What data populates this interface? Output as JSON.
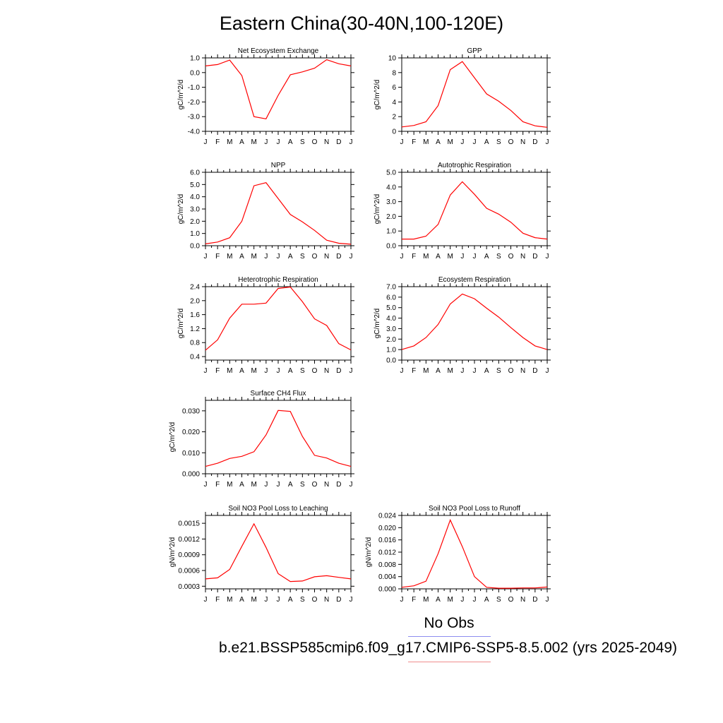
{
  "title": "Eastern China(30-40N,100-120E)",
  "legend": {
    "obs_label": "No Obs",
    "obs_color": "#8e8ef0",
    "model_label": "b.e21.BSSP585cmip6.f09_g17.CMIP6-SSP5-8.5.002 (yrs 2025-2049)",
    "model_color": "#f08e8e"
  },
  "line_color": "#ff0000",
  "chart_data": [
    {
      "type": "line",
      "title": "Net Ecosystem Exchange",
      "ylabel": "gC/m^2/d",
      "categories": [
        "J",
        "F",
        "M",
        "A",
        "M",
        "J",
        "J",
        "A",
        "S",
        "O",
        "N",
        "D",
        "J"
      ],
      "ylim": [
        -4.0,
        1.0
      ],
      "yticks": [
        "1.0",
        "0.0",
        "-1.0",
        "-2.0",
        "-3.0",
        "-4.0"
      ],
      "ytick_values": [
        1.0,
        0.0,
        -1.0,
        -2.0,
        -3.0,
        -4.0
      ],
      "values": [
        0.45,
        0.55,
        0.85,
        -0.2,
        -3.0,
        -3.15,
        -1.55,
        -0.15,
        0.05,
        0.3,
        0.88,
        0.6,
        0.45
      ]
    },
    {
      "type": "line",
      "title": "GPP",
      "ylabel": "gC/m^2/d",
      "categories": [
        "J",
        "F",
        "M",
        "A",
        "M",
        "J",
        "J",
        "A",
        "S",
        "O",
        "N",
        "D",
        "J"
      ],
      "ylim": [
        0,
        10
      ],
      "yticks": [
        "10",
        "8",
        "6",
        "4",
        "2",
        "0"
      ],
      "ytick_values": [
        10,
        8,
        6,
        4,
        2,
        0
      ],
      "values": [
        0.6,
        0.8,
        1.3,
        3.5,
        8.4,
        9.5,
        7.3,
        5.1,
        4.1,
        2.85,
        1.3,
        0.75,
        0.55
      ]
    },
    {
      "type": "line",
      "title": "NPP",
      "ylabel": "gC/m^2/d",
      "categories": [
        "J",
        "F",
        "M",
        "A",
        "M",
        "J",
        "J",
        "A",
        "S",
        "O",
        "N",
        "D",
        "J"
      ],
      "ylim": [
        0,
        6.0
      ],
      "yticks": [
        "6.0",
        "5.0",
        "4.0",
        "3.0",
        "2.0",
        "1.0",
        "0.0"
      ],
      "ytick_values": [
        6,
        5,
        4,
        3,
        2,
        1,
        0
      ],
      "values": [
        0.15,
        0.3,
        0.65,
        2.0,
        4.9,
        5.15,
        3.85,
        2.55,
        1.95,
        1.25,
        0.45,
        0.2,
        0.12
      ]
    },
    {
      "type": "line",
      "title": "Autotrophic Respiration",
      "ylabel": "gC/m^2/d",
      "categories": [
        "J",
        "F",
        "M",
        "A",
        "M",
        "J",
        "J",
        "A",
        "S",
        "O",
        "N",
        "D",
        "J"
      ],
      "ylim": [
        0,
        5.0
      ],
      "yticks": [
        "5.0",
        "4.0",
        "3.0",
        "2.0",
        "1.0",
        "0.0"
      ],
      "ytick_values": [
        5,
        4,
        3,
        2,
        1,
        0
      ],
      "values": [
        0.45,
        0.45,
        0.65,
        1.45,
        3.45,
        4.35,
        3.5,
        2.55,
        2.15,
        1.6,
        0.85,
        0.55,
        0.45
      ]
    },
    {
      "type": "line",
      "title": "Heterotrophic Respiration",
      "ylabel": "gC/m^2/d",
      "categories": [
        "J",
        "F",
        "M",
        "A",
        "M",
        "J",
        "J",
        "A",
        "S",
        "O",
        "N",
        "D",
        "J"
      ],
      "ylim": [
        0.3,
        2.4
      ],
      "yticks": [
        "2.4",
        "2.0",
        "1.6",
        "1.2",
        "0.8",
        "0.4"
      ],
      "ytick_values": [
        2.4,
        2.0,
        1.6,
        1.2,
        0.8,
        0.4
      ],
      "values": [
        0.58,
        0.88,
        1.5,
        1.9,
        1.9,
        1.93,
        2.35,
        2.39,
        1.97,
        1.48,
        1.29,
        0.77,
        0.59
      ]
    },
    {
      "type": "line",
      "title": "Ecosystem Respiration",
      "ylabel": "gC/m^2/d",
      "categories": [
        "J",
        "F",
        "M",
        "A",
        "M",
        "J",
        "J",
        "A",
        "S",
        "O",
        "N",
        "D",
        "J"
      ],
      "ylim": [
        0,
        7.0
      ],
      "yticks": [
        "7.0",
        "6.0",
        "5.0",
        "4.0",
        "3.0",
        "2.0",
        "1.0",
        "0.0"
      ],
      "ytick_values": [
        7,
        6,
        5,
        4,
        3,
        2,
        1,
        0
      ],
      "values": [
        1.0,
        1.35,
        2.15,
        3.4,
        5.35,
        6.3,
        5.85,
        4.95,
        4.1,
        3.1,
        2.15,
        1.35,
        1.0
      ]
    },
    {
      "type": "line",
      "title": "Surface CH4 Flux",
      "ylabel": "gC/m^2/d",
      "categories": [
        "J",
        "F",
        "M",
        "A",
        "M",
        "J",
        "J",
        "A",
        "S",
        "O",
        "N",
        "D",
        "J"
      ],
      "ylim": [
        0,
        0.035
      ],
      "yticks": [
        "0.030",
        "0.020",
        "0.010",
        "0.000"
      ],
      "ytick_values": [
        0.03,
        0.02,
        0.01,
        0.0
      ],
      "values": [
        0.0035,
        0.005,
        0.0073,
        0.0083,
        0.0105,
        0.0185,
        0.0302,
        0.0297,
        0.0178,
        0.0088,
        0.0075,
        0.005,
        0.0035
      ]
    },
    {
      "type": "line",
      "title": "Soil NO3 Pool Loss to Leaching",
      "ylabel": "gN/m^2/d",
      "categories": [
        "J",
        "F",
        "M",
        "A",
        "M",
        "J",
        "J",
        "A",
        "S",
        "O",
        "N",
        "D",
        "J"
      ],
      "ylim": [
        0.00025,
        0.00165
      ],
      "yticks": [
        "0.0015",
        "0.0012",
        "0.0009",
        "0.0006",
        "0.0003"
      ],
      "ytick_values": [
        0.0015,
        0.0012,
        0.0009,
        0.0006,
        0.0003
      ],
      "values": [
        0.00044,
        0.00046,
        0.00062,
        0.00106,
        0.00149,
        0.00104,
        0.00054,
        0.00039,
        0.0004,
        0.00048,
        0.0005,
        0.00047,
        0.00044
      ]
    },
    {
      "type": "line",
      "title": "Soil NO3 Pool Loss to Runoff",
      "ylabel": "gN/m^2/d",
      "categories": [
        "J",
        "F",
        "M",
        "A",
        "M",
        "J",
        "J",
        "A",
        "S",
        "O",
        "N",
        "D",
        "J"
      ],
      "ylim": [
        0,
        0.024
      ],
      "yticks": [
        "0.024",
        "0.020",
        "0.016",
        "0.012",
        "0.008",
        "0.004",
        "0.000"
      ],
      "ytick_values": [
        0.024,
        0.02,
        0.016,
        0.012,
        0.008,
        0.004,
        0.0
      ],
      "values": [
        0.0005,
        0.001,
        0.0025,
        0.0115,
        0.0225,
        0.0138,
        0.004,
        0.0005,
        0.0002,
        0.0002,
        0.0003,
        0.0003,
        0.0006
      ]
    }
  ]
}
